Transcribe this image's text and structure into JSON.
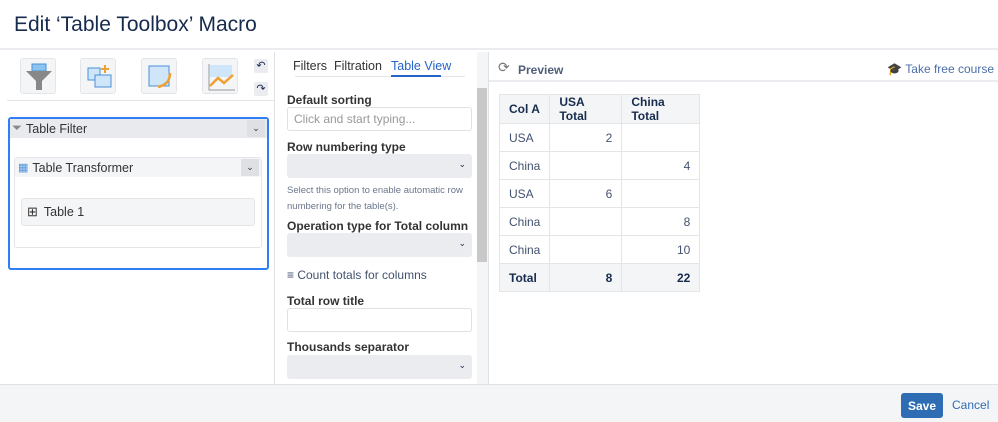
{
  "dialog": {
    "title": "Edit ‘Table Toolbox’ Macro"
  },
  "toolbar": {
    "tools": [
      "table-filter-icon",
      "table-transformer-icon",
      "table-spreadsheet-icon",
      "chart-from-table-icon"
    ],
    "undo": "undo-icon",
    "redo": "redo-icon"
  },
  "tree": {
    "filter": "Table Filter",
    "transformer": "Table Transformer",
    "table": "Table 1"
  },
  "tabs": [
    {
      "label": "Filters"
    },
    {
      "label": "Filtration"
    },
    {
      "label": "Table View",
      "active": true
    }
  ],
  "form": {
    "default_sorting": {
      "label": "Default sorting",
      "placeholder": "Click and start typing..."
    },
    "row_numbering": {
      "label": "Row numbering type",
      "value": "",
      "help": "Select this option to enable automatic row numbering for the table(s)."
    },
    "operation_type": {
      "label": "Operation type for Total column",
      "value": ""
    },
    "count_totals": "Count totals for columns",
    "total_row_title": {
      "label": "Total row title",
      "value": ""
    },
    "thousands_separator": {
      "label": "Thousands separator",
      "value": ""
    }
  },
  "preview": {
    "title": "Preview",
    "course_link": "Take free course",
    "headers": [
      "Col A",
      "USA Total",
      "China Total"
    ],
    "rows": [
      [
        "USA",
        "2",
        ""
      ],
      [
        "China",
        "",
        "4"
      ],
      [
        "USA",
        "6",
        ""
      ],
      [
        "China",
        "",
        "8"
      ],
      [
        "China",
        "",
        "10"
      ]
    ],
    "total": [
      "Total",
      "8",
      "22"
    ]
  },
  "footer": {
    "save": "Save",
    "cancel": "Cancel"
  },
  "colors": {
    "accent": "#2e6db4",
    "selected_border": "#2f7ef5",
    "orange": "#f0a030"
  }
}
